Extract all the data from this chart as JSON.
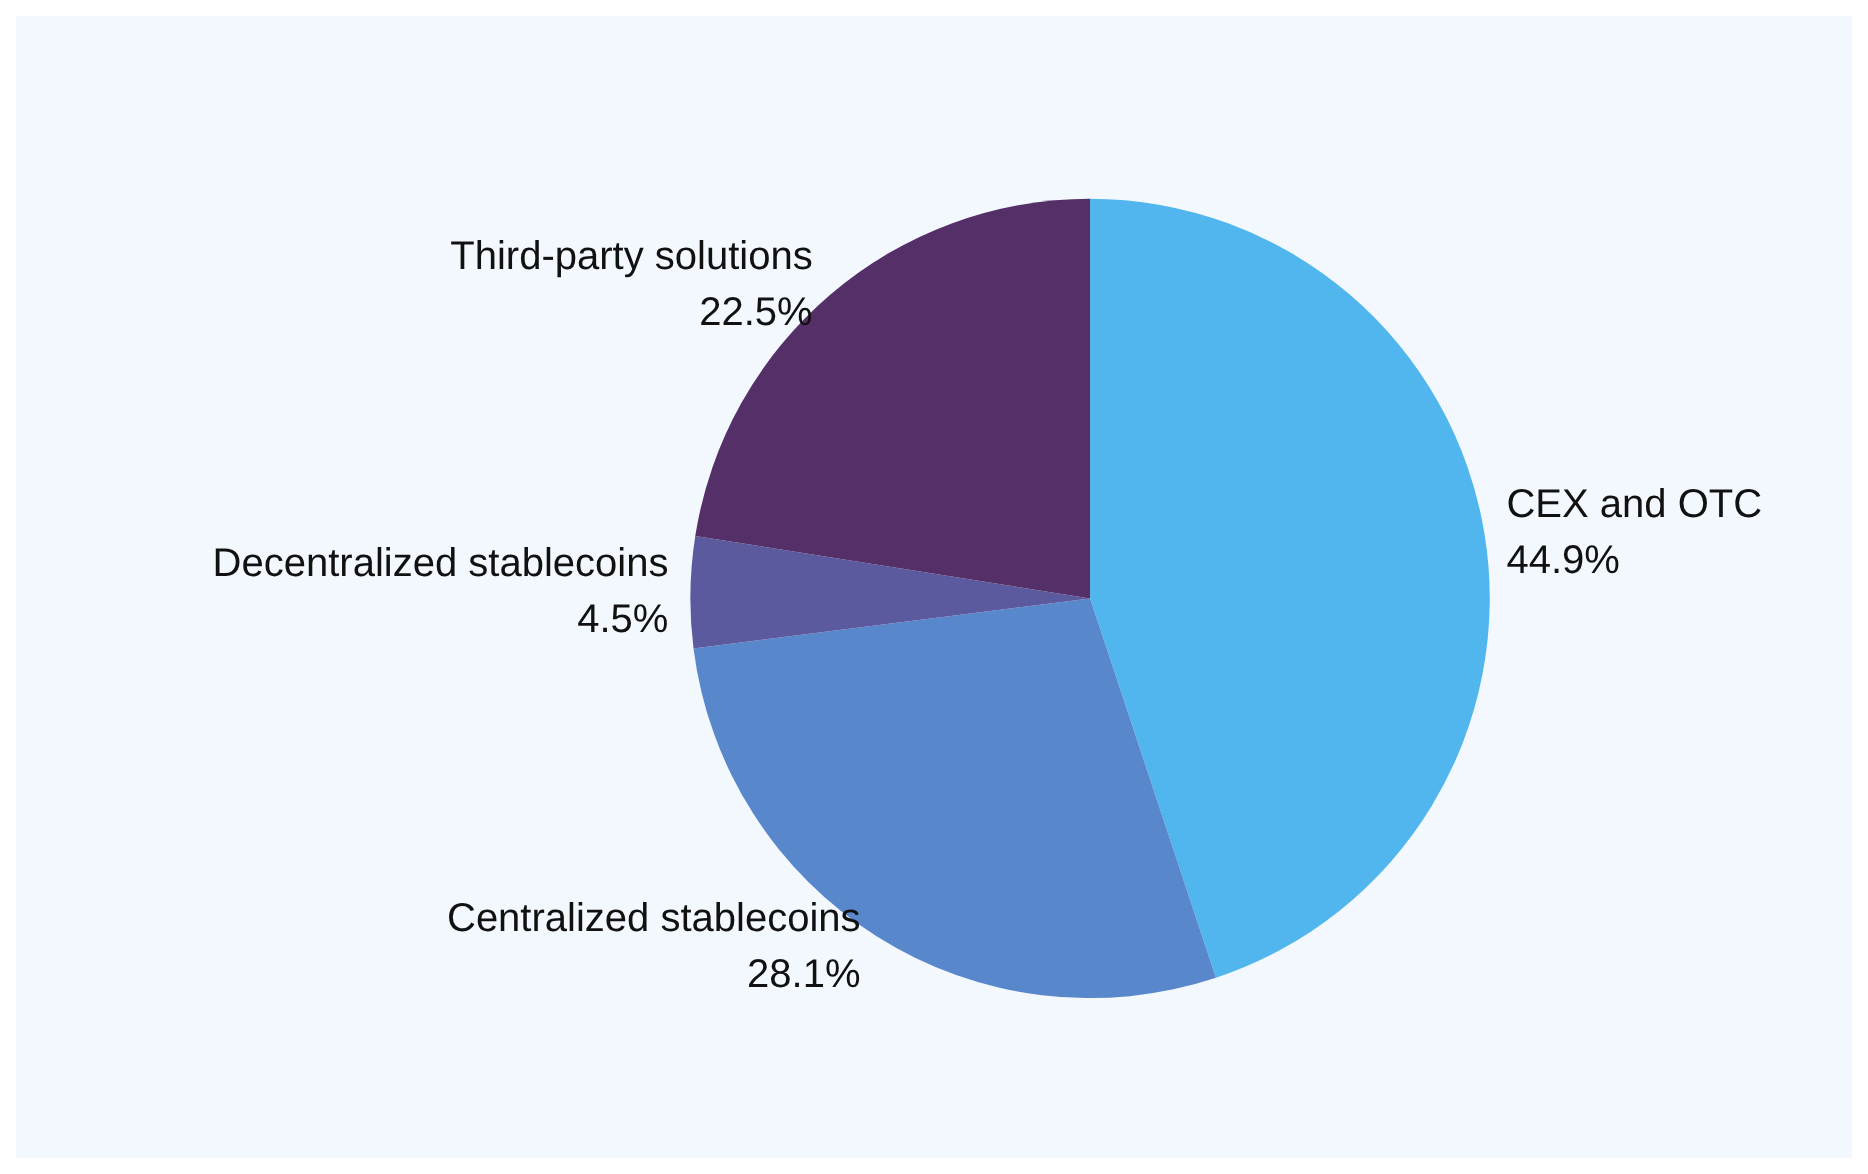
{
  "chart_data": {
    "type": "pie",
    "categories": [
      "CEX and OTC",
      "Centralized stablecoins",
      "Decentralized stablecoins",
      "Third-party solutions"
    ],
    "values": [
      44.9,
      28.1,
      4.5,
      22.5
    ],
    "value_labels": [
      "44.9%",
      "28.1%",
      "4.5%",
      "22.5%"
    ],
    "colors": [
      "#52b6ee",
      "#5887cc",
      "#5b5a9e",
      "#552f68"
    ],
    "legend": false
  }
}
